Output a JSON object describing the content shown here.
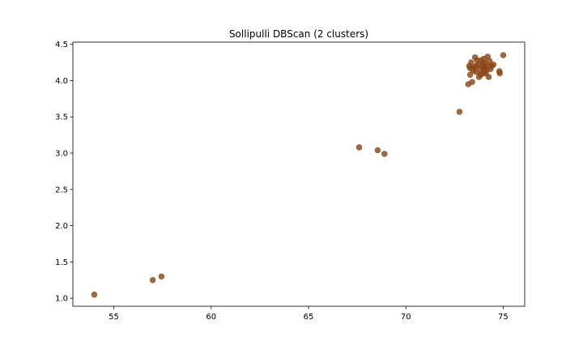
{
  "chart_data": {
    "type": "scatter",
    "title": "Sollipulli DBScan (2 clusters)",
    "xlabel": "",
    "ylabel": "",
    "xlim": [
      52.9,
      76.1
    ],
    "ylim": [
      0.89,
      4.53
    ],
    "xticks": [
      55,
      60,
      65,
      70,
      75
    ],
    "yticks": [
      1.0,
      1.5,
      2.0,
      2.5,
      3.0,
      3.5,
      4.0,
      4.5
    ],
    "xtick_labels": [
      "55",
      "60",
      "65",
      "70",
      "75"
    ],
    "ytick_labels": [
      "1.0",
      "1.5",
      "2.0",
      "2.5",
      "3.0",
      "3.5",
      "4.0",
      "4.5"
    ],
    "grid": false,
    "legend": false,
    "point_color": "#8b4513",
    "series": [
      {
        "points": [
          [
            54.0,
            1.05
          ],
          [
            57.0,
            1.25
          ],
          [
            57.45,
            1.3
          ],
          [
            67.6,
            3.08
          ],
          [
            68.55,
            3.04
          ],
          [
            68.9,
            2.99
          ],
          [
            72.75,
            3.57
          ],
          [
            73.2,
            3.95
          ],
          [
            73.4,
            3.98
          ],
          [
            73.3,
            4.08
          ],
          [
            73.25,
            4.2
          ],
          [
            73.35,
            4.25
          ],
          [
            73.55,
            4.32
          ],
          [
            73.5,
            4.18
          ],
          [
            73.6,
            4.12
          ],
          [
            73.7,
            4.22
          ],
          [
            73.75,
            4.05
          ],
          [
            73.8,
            4.15
          ],
          [
            73.85,
            4.28
          ],
          [
            73.9,
            4.2
          ],
          [
            73.95,
            4.1
          ],
          [
            74.0,
            4.3
          ],
          [
            74.05,
            4.18
          ],
          [
            74.1,
            4.24
          ],
          [
            74.15,
            4.14
          ],
          [
            74.2,
            4.33
          ],
          [
            74.25,
            4.05
          ],
          [
            74.3,
            4.27
          ],
          [
            74.35,
            4.16
          ],
          [
            74.4,
            4.2
          ],
          [
            74.5,
            4.22
          ],
          [
            73.45,
            4.14
          ],
          [
            73.65,
            4.28
          ],
          [
            73.85,
            4.08
          ],
          [
            74.0,
            4.16
          ],
          [
            74.2,
            4.2
          ],
          [
            73.3,
            4.17
          ],
          [
            74.8,
            4.13
          ],
          [
            74.82,
            4.1
          ],
          [
            75.0,
            4.35
          ],
          [
            73.6,
            4.2
          ],
          [
            73.95,
            4.24
          ],
          [
            74.1,
            4.1
          ]
        ]
      }
    ]
  }
}
